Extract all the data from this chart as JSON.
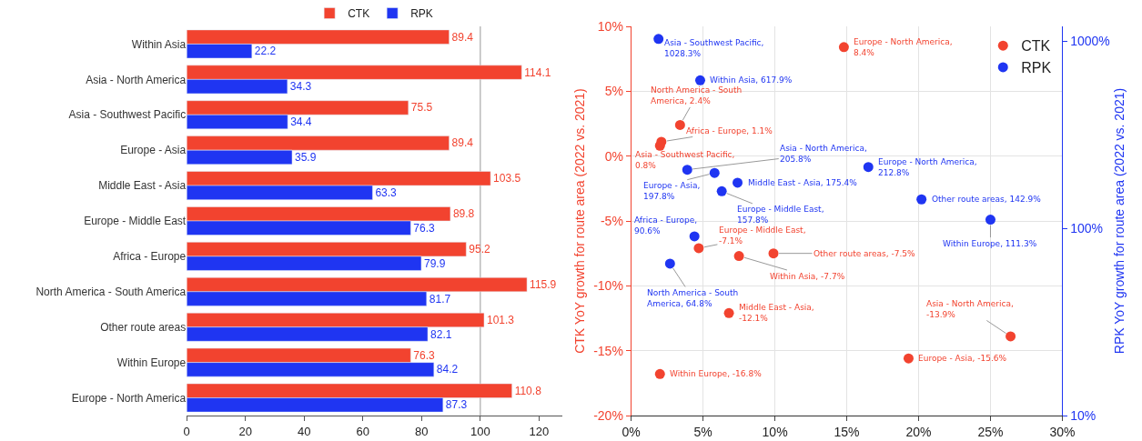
{
  "chart_data": [
    {
      "type": "bar",
      "orientation": "horizontal",
      "categories": [
        "Within Asia",
        "Asia - North America",
        "Asia - Southwest Pacific",
        "Europe - Asia",
        "Middle East - Asia",
        "Europe - Middle East",
        "Africa - Europe",
        "North America - South America",
        "Other route areas",
        "Within Europe",
        "Europe - North America"
      ],
      "series": [
        {
          "name": "CTK",
          "color": "#f2432f",
          "values": [
            89.4,
            114.1,
            75.5,
            89.4,
            103.5,
            89.8,
            95.2,
            115.9,
            101.3,
            76.3,
            110.8
          ]
        },
        {
          "name": "RPK",
          "color": "#1f35f2",
          "values": [
            22.2,
            34.3,
            34.4,
            35.9,
            63.3,
            76.3,
            79.9,
            81.7,
            82.1,
            84.2,
            87.3
          ]
        }
      ],
      "xlim": [
        0,
        128
      ],
      "xticks": [
        0,
        20,
        40,
        60,
        80,
        100,
        120
      ],
      "data_labels": true,
      "grid": false,
      "legend": "top",
      "ref_lines": [
        {
          "axis": "x",
          "value": 100,
          "color": "#b0b0b0"
        }
      ]
    },
    {
      "type": "scatter",
      "marker": "circle",
      "grid": true,
      "legend": "top right",
      "ylabel": "CTK YoY growth for route area (2022 vs. 2021)",
      "y2label": "RPK YoY growth for route area (2022 vs. 2021)",
      "xlim": [
        0,
        30
      ],
      "xticks": [
        {
          "value": 0,
          "label": "0%"
        },
        {
          "value": 5,
          "label": "5%"
        },
        {
          "value": 10,
          "label": "10%"
        },
        {
          "value": 15,
          "label": "15%"
        },
        {
          "value": 20,
          "label": "20%"
        },
        {
          "value": 25,
          "label": "25%"
        },
        {
          "value": 30,
          "label": "30%"
        }
      ],
      "ylim": [
        -20,
        10
      ],
      "yticks": [
        {
          "value": -20,
          "label": "-20%"
        },
        {
          "value": -15,
          "label": "-15%"
        },
        {
          "value": -10,
          "label": "-10%"
        },
        {
          "value": -5,
          "label": "-5%"
        },
        {
          "value": 0,
          "label": "0%"
        },
        {
          "value": 5,
          "label": "5%"
        },
        {
          "value": 10,
          "label": "10%"
        }
      ],
      "log": "y2",
      "y2lim": [
        10,
        1200
      ],
      "y2ticks": [
        {
          "value": 10,
          "label": "10%"
        },
        {
          "value": 100,
          "label": "100%"
        },
        {
          "value": 1000,
          "label": "1000%"
        }
      ],
      "series": [
        {
          "name": "CTK",
          "color": "#f2432f",
          "x": [
            14.8,
            3.4,
            2.1,
            2.0,
            4.7,
            7.5,
            9.9,
            6.8,
            2.0,
            19.3,
            26.4
          ],
          "values": [
            8.4,
            2.4,
            1.1,
            0.8,
            -7.1,
            -7.7,
            -7.5,
            -12.1,
            -16.8,
            -15.6,
            -13.9
          ],
          "value_labels": [
            "Europe - North America,\n8.4%",
            "North America - South\nAmerica, 2.4%",
            "Africa - Europe, 1.1%",
            "Asia - Southwest Pacific,\n0.8%",
            "Europe - Middle East,\n-7.1%",
            "Within Asia, -7.7%",
            "Other route areas, -7.5%",
            "Middle East - Asia,\n-12.1%",
            "Within Europe, -16.8%",
            "Europe - Asia, -15.6%",
            "Asia - North America,\n-13.9%"
          ]
        },
        {
          "name": "RPK",
          "color": "#1f35f2",
          "axis": "y2",
          "x": [
            1.9,
            4.8,
            3.9,
            5.8,
            7.4,
            6.3,
            16.5,
            20.2,
            25.0,
            4.4,
            2.7
          ],
          "values": [
            1028.3,
            617.9,
            205.8,
            197.8,
            175.4,
            157.8,
            212.8,
            142.9,
            111.3,
            90.6,
            64.8
          ],
          "value_labels": [
            "Asia - Southwest Pacific,\n1028.3%",
            "Within Asia, 617.9%",
            "Asia - North America,\n205.8%",
            "Europe - Asia,\n197.8%",
            "Middle East - Asia, 175.4%",
            "Europe - Middle East,\n157.8%",
            "Europe - North America,\n212.8%",
            "Other route areas, 142.9%",
            "Within Europe, 111.3%",
            "Africa - Europe,\n90.6%",
            "North America - South\nAmerica, 64.8%"
          ]
        }
      ]
    }
  ]
}
